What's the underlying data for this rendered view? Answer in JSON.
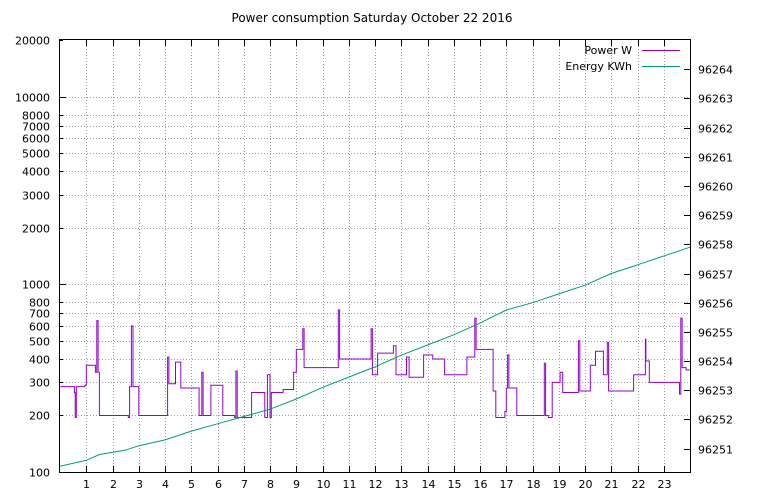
{
  "chart_data": {
    "type": "line",
    "title": "Power consumption Saturday October 22 2016",
    "xlabel": "",
    "ylabel": "",
    "y2label": "",
    "grid": true,
    "legend_position": "top-right",
    "x_range": [
      0,
      24
    ],
    "x_ticks": [
      1,
      2,
      3,
      4,
      5,
      6,
      7,
      8,
      9,
      10,
      11,
      12,
      13,
      14,
      15,
      16,
      17,
      18,
      19,
      20,
      21,
      22,
      23
    ],
    "y_scale": "log",
    "y_range": [
      100,
      20000
    ],
    "y_ticks": [
      100,
      200,
      300,
      400,
      500,
      600,
      700,
      800,
      1000,
      2000,
      3000,
      4000,
      5000,
      6000,
      7000,
      8000,
      10000,
      20000
    ],
    "y2_range": [
      96250.2,
      96265.0
    ],
    "y2_ticks": [
      96251,
      96252,
      96253,
      96254,
      96255,
      96256,
      96257,
      96258,
      96259,
      96260,
      96261,
      96262,
      96263,
      96264
    ],
    "colors": {
      "power": "#9400d3",
      "energy": "#009e73"
    },
    "series": [
      {
        "name": "Power W",
        "axis": "y",
        "step": true,
        "points": [
          [
            0.0,
            285
          ],
          [
            0.55,
            265
          ],
          [
            0.58,
            195
          ],
          [
            0.62,
            285
          ],
          [
            0.95,
            290
          ],
          [
            1.0,
            370
          ],
          [
            1.35,
            340
          ],
          [
            1.4,
            640
          ],
          [
            1.45,
            340
          ],
          [
            1.5,
            200
          ],
          [
            2.6,
            195
          ],
          [
            2.65,
            285
          ],
          [
            2.72,
            600
          ],
          [
            2.78,
            285
          ],
          [
            3.0,
            200
          ],
          [
            4.1,
            410
          ],
          [
            4.15,
            295
          ],
          [
            4.4,
            385
          ],
          [
            4.6,
            280
          ],
          [
            5.3,
            200
          ],
          [
            5.4,
            340
          ],
          [
            5.45,
            200
          ],
          [
            5.75,
            290
          ],
          [
            6.2,
            200
          ],
          [
            6.65,
            195
          ],
          [
            6.7,
            345
          ],
          [
            6.75,
            195
          ],
          [
            7.3,
            265
          ],
          [
            7.8,
            195
          ],
          [
            7.9,
            330
          ],
          [
            8.0,
            195
          ],
          [
            8.05,
            265
          ],
          [
            8.5,
            275
          ],
          [
            8.9,
            340
          ],
          [
            9.0,
            450
          ],
          [
            9.25,
            580
          ],
          [
            9.3,
            360
          ],
          [
            10.6,
            730
          ],
          [
            10.65,
            400
          ],
          [
            11.85,
            580
          ],
          [
            11.9,
            330
          ],
          [
            12.1,
            430
          ],
          [
            12.7,
            470
          ],
          [
            12.8,
            330
          ],
          [
            13.2,
            410
          ],
          [
            13.3,
            320
          ],
          [
            13.85,
            420
          ],
          [
            14.2,
            400
          ],
          [
            14.65,
            330
          ],
          [
            15.5,
            410
          ],
          [
            15.8,
            660
          ],
          [
            15.85,
            450
          ],
          [
            16.5,
            270
          ],
          [
            16.6,
            195
          ],
          [
            16.95,
            210
          ],
          [
            17.0,
            280
          ],
          [
            17.05,
            420
          ],
          [
            17.1,
            280
          ],
          [
            17.4,
            200
          ],
          [
            18.45,
            380
          ],
          [
            18.5,
            200
          ],
          [
            18.6,
            195
          ],
          [
            18.75,
            300
          ],
          [
            19.05,
            340
          ],
          [
            19.15,
            265
          ],
          [
            19.75,
            500
          ],
          [
            19.8,
            270
          ],
          [
            20.2,
            370
          ],
          [
            20.4,
            440
          ],
          [
            20.7,
            330
          ],
          [
            20.85,
            490
          ],
          [
            20.9,
            270
          ],
          [
            21.85,
            330
          ],
          [
            22.3,
            510
          ],
          [
            22.32,
            390
          ],
          [
            22.45,
            300
          ],
          [
            23.6,
            260
          ],
          [
            23.65,
            660
          ],
          [
            23.7,
            360
          ],
          [
            23.85,
            350
          ],
          [
            24.0,
            350
          ]
        ]
      },
      {
        "name": "Energy KWh",
        "axis": "y2",
        "step": false,
        "points": [
          [
            0.0,
            96250.4
          ],
          [
            1.0,
            96250.6
          ],
          [
            1.5,
            96250.8
          ],
          [
            2.5,
            96250.95
          ],
          [
            3.0,
            96251.1
          ],
          [
            4.0,
            96251.3
          ],
          [
            5.0,
            96251.6
          ],
          [
            6.0,
            96251.85
          ],
          [
            7.0,
            96252.1
          ],
          [
            8.0,
            96252.35
          ],
          [
            9.0,
            96252.7
          ],
          [
            10.0,
            96253.1
          ],
          [
            11.0,
            96253.45
          ],
          [
            12.0,
            96253.8
          ],
          [
            13.0,
            96254.2
          ],
          [
            14.0,
            96254.55
          ],
          [
            15.0,
            96254.9
          ],
          [
            16.0,
            96255.3
          ],
          [
            17.0,
            96255.75
          ],
          [
            18.0,
            96256.0
          ],
          [
            19.0,
            96256.3
          ],
          [
            20.0,
            96256.6
          ],
          [
            21.0,
            96257.0
          ],
          [
            22.0,
            96257.3
          ],
          [
            23.0,
            96257.6
          ],
          [
            24.0,
            96257.9
          ]
        ]
      }
    ]
  }
}
